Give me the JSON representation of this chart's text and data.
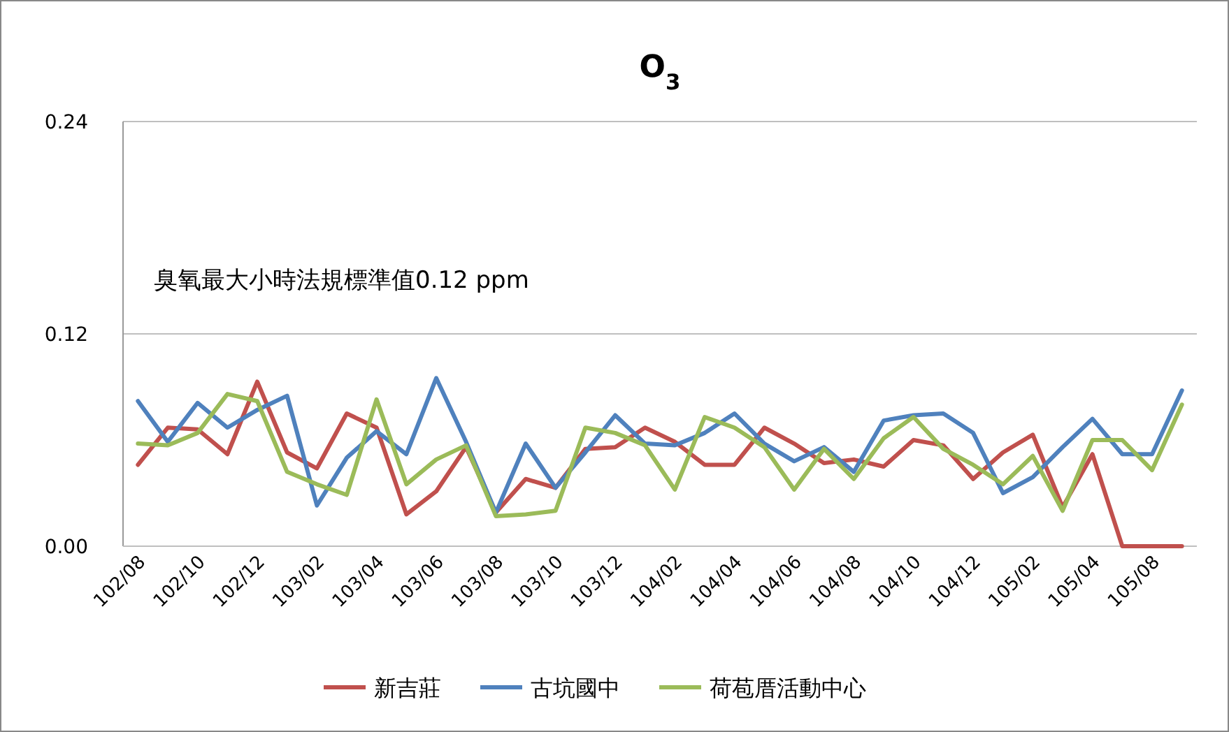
{
  "chart_data": {
    "type": "line",
    "title": "O$_{3}$",
    "categories": [
      "102/08",
      null,
      "102/10",
      null,
      "102/12",
      null,
      "103/02",
      null,
      "103/04",
      null,
      "103/06",
      null,
      "103/08",
      null,
      "103/10",
      null,
      "103/12",
      null,
      "104/02",
      null,
      "104/04",
      null,
      "104/06",
      null,
      "104/08",
      null,
      "104/10",
      null,
      "104/12",
      null,
      "105/02",
      null,
      "105/04",
      null,
      "105/08",
      null
    ],
    "series": [
      {
        "name": "新吉莊",
        "color": "#c0504d",
        "values": [
          0.046,
          0.067,
          0.066,
          0.052,
          0.093,
          0.053,
          0.044,
          0.075,
          0.067,
          0.018,
          0.031,
          0.056,
          0.019,
          0.038,
          0.033,
          0.055,
          0.056,
          0.067,
          0.059,
          0.046,
          0.046,
          0.067,
          0.058,
          0.047,
          0.049,
          0.045,
          0.06,
          0.057,
          0.038,
          0.053,
          0.063,
          0.022,
          0.052,
          0,
          0,
          0
        ]
      },
      {
        "name": "古坑國中",
        "color": "#4f81bd",
        "values": [
          0.082,
          0.059,
          0.081,
          0.067,
          0.077,
          0.085,
          0.023,
          0.05,
          0.065,
          0.052,
          0.095,
          0.059,
          0.019,
          0.058,
          0.033,
          0.053,
          0.074,
          0.058,
          0.057,
          0.064,
          0.075,
          0.058,
          0.048,
          0.056,
          0.042,
          0.071,
          0.074,
          0.075,
          0.064,
          0.03,
          0.039,
          0.056,
          0.072,
          0.052,
          0.052,
          0.088
        ]
      },
      {
        "name": "荷苞厝活動中心",
        "color": "#9bbb59",
        "values": [
          0.058,
          0.057,
          0.064,
          0.086,
          0.082,
          0.042,
          0.035,
          0.029,
          0.083,
          0.035,
          0.049,
          0.057,
          0.017,
          0.018,
          0.02,
          0.067,
          0.064,
          0.057,
          0.032,
          0.073,
          0.067,
          0.056,
          0.032,
          0.055,
          0.038,
          0.061,
          0.073,
          0.055,
          0.046,
          0.035,
          0.051,
          0.02,
          0.06,
          0.06,
          0.043,
          0.08
        ]
      }
    ],
    "ylim": [
      0,
      0.24
    ],
    "yticks": [
      {
        "value": 0,
        "label": "0.00"
      },
      {
        "value": 0.12,
        "label": "0.12"
      },
      {
        "value": 0.24,
        "label": "0.24"
      }
    ],
    "grid": "y",
    "legend": "bottom",
    "annotations": [
      "臭氧最大小時法規標準值0.12 ppm"
    ]
  }
}
